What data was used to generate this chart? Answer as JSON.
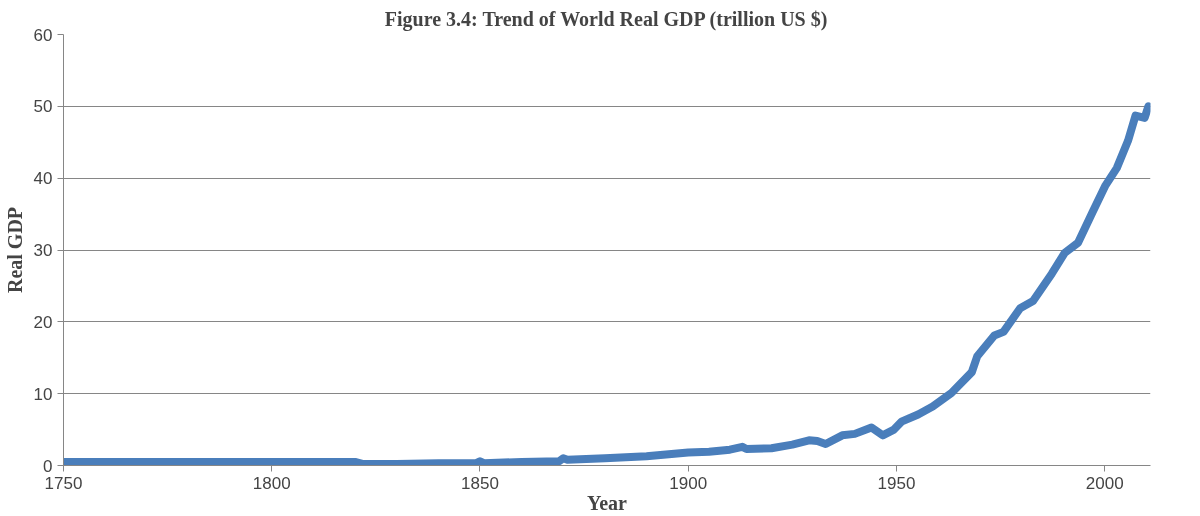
{
  "chart_data": {
    "type": "line",
    "title": "Figure 3.4: Trend of World Real GDP (trillion US $)",
    "xlabel": "Year",
    "ylabel": "Real GDP",
    "x": [
      1750,
      1760,
      1770,
      1780,
      1790,
      1800,
      1810,
      1820,
      1822,
      1830,
      1840,
      1849,
      1850,
      1851,
      1860,
      1869,
      1870,
      1871,
      1880,
      1890,
      1900,
      1905,
      1910,
      1913,
      1914,
      1920,
      1925,
      1929,
      1931,
      1933,
      1937,
      1940,
      1944,
      1946.7,
      1949.4,
      1951.2,
      1955.2,
      1958.7,
      1963.2,
      1968.1,
      1969.4,
      1973.5,
      1975.7,
      1979.7,
      1982.8,
      1987.3,
      1990.4,
      1993.6,
      1997.1,
      2000.2,
      2002.9,
      2005.6,
      2007.4,
      2009.6,
      2010.5
    ],
    "values": [
      0.5,
      0.5,
      0.5,
      0.5,
      0.5,
      0.5,
      0.5,
      0.5,
      0.2,
      0.2,
      0.3,
      0.3,
      0.6,
      0.3,
      0.5,
      0.6,
      1.0,
      0.8,
      1.0,
      1.3,
      1.8,
      1.9,
      2.2,
      2.6,
      2.3,
      2.4,
      2.9,
      3.5,
      3.4,
      3.0,
      4.2,
      4.4,
      5.3,
      4.2,
      5.0,
      6.1,
      7.1,
      8.2,
      10.1,
      13.0,
      15.2,
      18.1,
      18.6,
      21.9,
      22.9,
      26.7,
      29.6,
      31.0,
      35.3,
      39.0,
      41.4,
      45.2,
      48.7,
      48.4,
      50.0
    ],
    "color": "#4a7ebb",
    "xlim": [
      1750,
      2011
    ],
    "xticks": [
      1750,
      1800,
      1850,
      1900,
      1950,
      2000
    ],
    "ylim": [
      0,
      60
    ],
    "yticks": [
      0,
      10,
      20,
      30,
      40,
      50,
      60
    ],
    "grid": "y",
    "marker": "none",
    "line_style": "solid"
  }
}
